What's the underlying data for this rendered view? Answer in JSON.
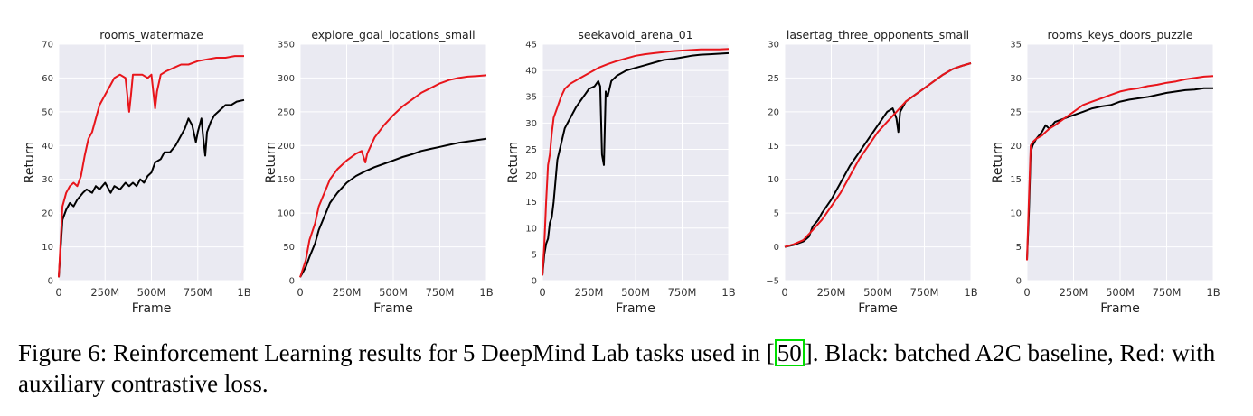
{
  "caption": {
    "figure_label": "Figure 6:",
    "pre": "Reinforcement Learning results for 5 DeepMind Lab tasks used in [",
    "citation": "50",
    "post": "]. Black: batched A2C baseline, Red: with auxiliary contrastive loss."
  },
  "colors": {
    "panel_background": "#eaeaf2",
    "grid": "#ffffff",
    "baseline": "#000000",
    "contrastive": "#e8151b",
    "citation_box": "#00dd00"
  },
  "chart_data": [
    {
      "type": "line",
      "title": "rooms_watermaze",
      "xlabel": "Frame",
      "ylabel": "Return",
      "xlim": [
        0,
        1.0
      ],
      "ylim": [
        0,
        70
      ],
      "x_ticks": [
        0,
        0.25,
        0.5,
        0.75,
        1.0
      ],
      "x_tick_labels": [
        "0",
        "250M",
        "500M",
        "750M",
        "1B"
      ],
      "y_ticks": [
        0,
        10,
        20,
        30,
        40,
        50,
        60,
        70
      ],
      "grid": true,
      "series": [
        {
          "color": "#000000",
          "x": [
            0,
            0.02,
            0.04,
            0.06,
            0.08,
            0.1,
            0.13,
            0.15,
            0.18,
            0.2,
            0.22,
            0.25,
            0.28,
            0.3,
            0.33,
            0.36,
            0.38,
            0.4,
            0.42,
            0.44,
            0.46,
            0.48,
            0.5,
            0.52,
            0.55,
            0.57,
            0.6,
            0.63,
            0.65,
            0.68,
            0.7,
            0.72,
            0.74,
            0.75,
            0.77,
            0.78,
            0.79,
            0.8,
            0.82,
            0.84,
            0.86,
            0.88,
            0.9,
            0.93,
            0.96,
            1.0
          ],
          "y": [
            1,
            18,
            21,
            23,
            22,
            24,
            26,
            27,
            26,
            28,
            27,
            29,
            26,
            28,
            27,
            29,
            28,
            29,
            28,
            30,
            29,
            31,
            32,
            35,
            36,
            38,
            38,
            40,
            42,
            45,
            48,
            46,
            41,
            44,
            48,
            42,
            37,
            44,
            47,
            49,
            50,
            51,
            52,
            52,
            53,
            53.5
          ]
        },
        {
          "color": "#e8151b",
          "x": [
            0,
            0.02,
            0.04,
            0.06,
            0.08,
            0.1,
            0.12,
            0.14,
            0.16,
            0.18,
            0.2,
            0.22,
            0.24,
            0.26,
            0.28,
            0.3,
            0.33,
            0.36,
            0.38,
            0.39,
            0.4,
            0.42,
            0.45,
            0.48,
            0.5,
            0.52,
            0.53,
            0.55,
            0.58,
            0.62,
            0.66,
            0.7,
            0.75,
            0.8,
            0.85,
            0.9,
            0.95,
            1.0
          ],
          "y": [
            1,
            22,
            26,
            28,
            29,
            28,
            31,
            37,
            42,
            44,
            48,
            52,
            54,
            56,
            58,
            60,
            61,
            60,
            50,
            55,
            61,
            61,
            61,
            60,
            61,
            51,
            56,
            61,
            62,
            63,
            64,
            64,
            65,
            65.5,
            66,
            66,
            66.5,
            66.5
          ]
        }
      ]
    },
    {
      "type": "line",
      "title": "explore_goal_locations_small",
      "xlabel": "Frame",
      "ylabel": "Return",
      "xlim": [
        0,
        1.0
      ],
      "ylim": [
        0,
        350
      ],
      "x_ticks": [
        0,
        0.25,
        0.5,
        0.75,
        1.0
      ],
      "x_tick_labels": [
        "0",
        "250M",
        "500M",
        "750M",
        "1B"
      ],
      "y_ticks": [
        0,
        50,
        100,
        150,
        200,
        250,
        300,
        350
      ],
      "grid": true,
      "series": [
        {
          "color": "#000000",
          "x": [
            0,
            0.03,
            0.05,
            0.08,
            0.1,
            0.13,
            0.16,
            0.2,
            0.25,
            0.3,
            0.35,
            0.4,
            0.45,
            0.5,
            0.55,
            0.6,
            0.65,
            0.7,
            0.75,
            0.8,
            0.85,
            0.9,
            0.95,
            1.0
          ],
          "y": [
            5,
            20,
            35,
            55,
            75,
            95,
            115,
            130,
            145,
            155,
            162,
            168,
            173,
            178,
            183,
            187,
            192,
            195,
            198,
            201,
            204,
            206,
            208,
            210
          ]
        },
        {
          "color": "#e8151b",
          "x": [
            0,
            0.03,
            0.05,
            0.08,
            0.1,
            0.13,
            0.16,
            0.2,
            0.25,
            0.3,
            0.33,
            0.35,
            0.36,
            0.38,
            0.4,
            0.45,
            0.5,
            0.55,
            0.6,
            0.65,
            0.7,
            0.75,
            0.8,
            0.85,
            0.9,
            0.95,
            1.0
          ],
          "y": [
            5,
            30,
            60,
            85,
            110,
            130,
            150,
            165,
            178,
            188,
            192,
            175,
            188,
            200,
            212,
            230,
            245,
            258,
            268,
            278,
            285,
            292,
            297,
            300,
            302,
            303,
            304
          ]
        }
      ]
    },
    {
      "type": "line",
      "title": "seekavoid_arena_01",
      "xlabel": "Frame",
      "ylabel": "Return",
      "xlim": [
        0,
        1.0
      ],
      "ylim": [
        0,
        45
      ],
      "x_ticks": [
        0,
        0.25,
        0.5,
        0.75,
        1.0
      ],
      "x_tick_labels": [
        "0",
        "250M",
        "500M",
        "750M",
        "1B"
      ],
      "y_ticks": [
        0,
        5,
        10,
        15,
        20,
        25,
        30,
        35,
        40,
        45
      ],
      "grid": true,
      "series": [
        {
          "color": "#000000",
          "x": [
            0,
            0.01,
            0.02,
            0.03,
            0.04,
            0.05,
            0.06,
            0.08,
            0.1,
            0.12,
            0.15,
            0.18,
            0.2,
            0.23,
            0.25,
            0.28,
            0.3,
            0.31,
            0.32,
            0.33,
            0.34,
            0.35,
            0.37,
            0.4,
            0.45,
            0.5,
            0.55,
            0.6,
            0.65,
            0.7,
            0.75,
            0.8,
            0.85,
            0.9,
            0.95,
            1.0
          ],
          "y": [
            1,
            5,
            7,
            8,
            11,
            12,
            15,
            23,
            26,
            29,
            31,
            33,
            34,
            35.5,
            36.5,
            37,
            38,
            37,
            24,
            22,
            36,
            35,
            38,
            39,
            40,
            40.5,
            41,
            41.5,
            42,
            42.2,
            42.5,
            42.8,
            43,
            43.1,
            43.2,
            43.3
          ]
        },
        {
          "color": "#e8151b",
          "x": [
            0,
            0.01,
            0.02,
            0.03,
            0.04,
            0.05,
            0.06,
            0.08,
            0.1,
            0.12,
            0.15,
            0.2,
            0.25,
            0.3,
            0.35,
            0.4,
            0.45,
            0.5,
            0.55,
            0.6,
            0.65,
            0.7,
            0.75,
            0.8,
            0.85,
            0.9,
            0.95,
            1.0
          ],
          "y": [
            1,
            7,
            15,
            22,
            24,
            28,
            31,
            33,
            35,
            36.5,
            37.5,
            38.5,
            39.5,
            40.5,
            41.2,
            41.8,
            42.3,
            42.8,
            43.1,
            43.3,
            43.5,
            43.7,
            43.8,
            43.9,
            44,
            44,
            44,
            44.1
          ]
        }
      ]
    },
    {
      "type": "line",
      "title": "lasertag_three_opponents_small",
      "xlabel": "Frame",
      "ylabel": "",
      "xlim": [
        0,
        1.0
      ],
      "ylim": [
        -5,
        30
      ],
      "x_ticks": [
        0,
        0.25,
        0.5,
        0.75,
        1.0
      ],
      "x_tick_labels": [
        "0",
        "250M",
        "500M",
        "750M",
        "1B"
      ],
      "y_ticks": [
        -5,
        0,
        5,
        10,
        15,
        20,
        25,
        30
      ],
      "y_tick_labels": [
        "−5",
        "0",
        "5",
        "10",
        "15",
        "20",
        "25",
        "30"
      ],
      "grid": true,
      "series": [
        {
          "color": "#000000",
          "x": [
            0,
            0.05,
            0.1,
            0.13,
            0.15,
            0.18,
            0.2,
            0.25,
            0.3,
            0.35,
            0.4,
            0.45,
            0.5,
            0.55,
            0.58,
            0.6,
            0.61,
            0.62,
            0.65,
            0.7,
            0.75,
            0.8,
            0.85,
            0.9,
            0.95,
            1.0
          ],
          "y": [
            0,
            0.3,
            0.8,
            1.5,
            3,
            4,
            5,
            7,
            9.5,
            12,
            14,
            16,
            18,
            20,
            20.5,
            19,
            17,
            20,
            21.5,
            22.5,
            23.5,
            24.5,
            25.5,
            26.3,
            26.8,
            27.2
          ]
        },
        {
          "color": "#e8151b",
          "x": [
            0,
            0.05,
            0.1,
            0.15,
            0.2,
            0.25,
            0.3,
            0.35,
            0.4,
            0.45,
            0.5,
            0.55,
            0.6,
            0.65,
            0.7,
            0.75,
            0.8,
            0.85,
            0.9,
            0.95,
            1.0
          ],
          "y": [
            0,
            0.4,
            1,
            2.5,
            4,
            6,
            8,
            10.5,
            13,
            15,
            17,
            18.5,
            20,
            21.5,
            22.5,
            23.5,
            24.5,
            25.5,
            26.3,
            26.8,
            27.2
          ]
        }
      ]
    },
    {
      "type": "line",
      "title": "rooms_keys_doors_puzzle",
      "xlabel": "Frame",
      "ylabel": "Return",
      "xlim": [
        0,
        1.0
      ],
      "ylim": [
        0,
        35
      ],
      "x_ticks": [
        0,
        0.25,
        0.5,
        0.75,
        1.0
      ],
      "x_tick_labels": [
        "0",
        "250M",
        "500M",
        "750M",
        "1B"
      ],
      "y_ticks": [
        0,
        5,
        10,
        15,
        20,
        25,
        30,
        35
      ],
      "grid": true,
      "series": [
        {
          "color": "#000000",
          "x": [
            0,
            0.01,
            0.02,
            0.03,
            0.05,
            0.08,
            0.1,
            0.12,
            0.15,
            0.2,
            0.25,
            0.3,
            0.35,
            0.4,
            0.45,
            0.5,
            0.55,
            0.6,
            0.65,
            0.7,
            0.75,
            0.8,
            0.85,
            0.9,
            0.95,
            1.0
          ],
          "y": [
            3,
            10,
            19,
            20,
            21,
            22,
            23,
            22.5,
            23.5,
            24,
            24.5,
            25,
            25.5,
            25.8,
            26,
            26.5,
            26.8,
            27,
            27.2,
            27.5,
            27.8,
            28,
            28.2,
            28.3,
            28.5,
            28.5
          ]
        },
        {
          "color": "#e8151b",
          "x": [
            0,
            0.01,
            0.02,
            0.03,
            0.05,
            0.08,
            0.1,
            0.12,
            0.15,
            0.2,
            0.25,
            0.3,
            0.35,
            0.4,
            0.45,
            0.5,
            0.55,
            0.6,
            0.65,
            0.7,
            0.75,
            0.8,
            0.85,
            0.9,
            0.95,
            1.0
          ],
          "y": [
            3,
            12,
            20,
            20.5,
            21,
            21.5,
            22,
            22.5,
            23,
            24,
            25,
            26,
            26.5,
            27,
            27.5,
            28,
            28.3,
            28.5,
            28.8,
            29,
            29.3,
            29.5,
            29.8,
            30,
            30.2,
            30.3
          ]
        }
      ]
    }
  ]
}
